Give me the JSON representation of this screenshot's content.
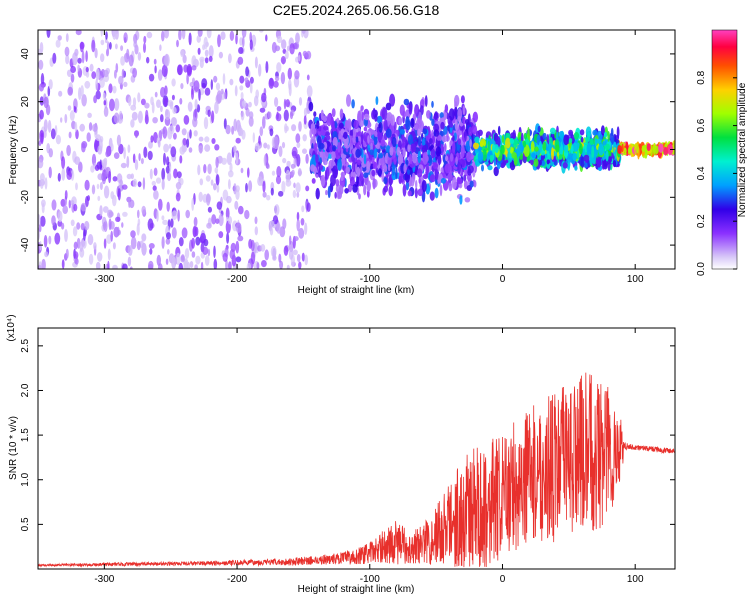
{
  "figure": {
    "title": "C2E5.2024.265.06.56.G18"
  },
  "chart_data": [
    {
      "type": "heatmap",
      "title": "C2E5.2024.265.06.56.G18",
      "xlabel": "Height of straight line (km)",
      "ylabel": "Frequency (Hz)",
      "xlim": [
        -350,
        130
      ],
      "ylim": [
        -50,
        50
      ],
      "xticks": [
        -300,
        -200,
        -100,
        0,
        100
      ],
      "yticks": [
        -40,
        -20,
        0,
        20,
        40
      ],
      "colorbar": {
        "label": "Normalized spectral amplitude",
        "range": [
          0,
          1
        ],
        "ticks": [
          0.0,
          0.2,
          0.4,
          0.6,
          0.8
        ],
        "tick_labels": [
          "0.0",
          "0.2",
          "0.4",
          "0.6",
          "0.8"
        ],
        "colormap": "rainbow (purple-blue-cyan-green-yellow-red-magenta)"
      },
      "regions": [
        {
          "x_range": [
            -350,
            -145
          ],
          "freq_spread": [
            -50,
            50
          ],
          "amplitude": [
            0.05,
            0.2
          ]
        },
        {
          "x_range": [
            -145,
            -20
          ],
          "freq_spread": [
            -25,
            25
          ],
          "amplitude": [
            0.1,
            0.35
          ]
        },
        {
          "x_range": [
            -20,
            88
          ],
          "freq_spread": [
            -10,
            10
          ],
          "amplitude": [
            0.2,
            0.6
          ]
        },
        {
          "x_range": [
            88,
            130
          ],
          "freq_spread": [
            -2,
            2
          ],
          "amplitude": [
            0.5,
            0.95
          ]
        }
      ],
      "grid": false
    },
    {
      "type": "line",
      "xlabel": "Height of straight line (km)",
      "ylabel": "SNR (10 * v/v)",
      "y_multiplier": "(x10⁴)",
      "xlim": [
        -350,
        130
      ],
      "ylim": [
        0,
        2.7
      ],
      "xticks": [
        -300,
        -200,
        -100,
        0,
        100
      ],
      "yticks": [
        0.5,
        1.0,
        1.5,
        2.0,
        2.5
      ],
      "ytick_labels": [
        "0.5",
        "1.0",
        "1.5",
        "2.0",
        "2.5"
      ],
      "color": "#e8302c",
      "series": [
        {
          "x": [
            -350,
            -300,
            -250,
            -200,
            -160,
            -140,
            -120,
            -110,
            -100,
            -90,
            -80,
            -70,
            -60,
            -50,
            -40,
            -30,
            -20,
            -10,
            0,
            10,
            20,
            30,
            40,
            50,
            60,
            70,
            80,
            90,
            92,
            100,
            110,
            120,
            130
          ],
          "y": [
            0.04,
            0.05,
            0.06,
            0.07,
            0.08,
            0.1,
            0.12,
            0.14,
            0.18,
            0.25,
            0.3,
            0.24,
            0.28,
            0.38,
            0.5,
            0.62,
            0.68,
            0.72,
            0.8,
            0.95,
            1.05,
            1.1,
            1.15,
            1.25,
            1.3,
            1.32,
            1.3,
            1.35,
            1.38,
            1.36,
            1.35,
            1.33,
            1.32
          ],
          "spread": [
            0.01,
            0.02,
            0.02,
            0.03,
            0.04,
            0.05,
            0.07,
            0.09,
            0.12,
            0.18,
            0.25,
            0.18,
            0.22,
            0.35,
            0.5,
            0.65,
            0.7,
            0.75,
            0.7,
            0.75,
            0.75,
            0.8,
            0.85,
            0.85,
            0.9,
            0.9,
            0.85,
            0.3,
            0.04,
            0.03,
            0.03,
            0.03,
            0.03
          ]
        }
      ],
      "grid": false
    }
  ]
}
